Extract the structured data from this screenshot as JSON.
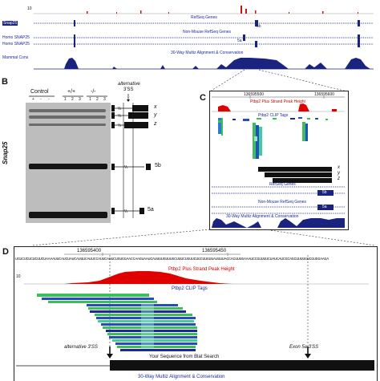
{
  "panelA": {
    "scale_value": "10",
    "tracks": [
      {
        "left_label": "",
        "title": "RefSeq Genes"
      },
      {
        "left_label": "Snap25",
        "title": ""
      },
      {
        "left_label": "",
        "title": "Non-Mouse RefSeq Genes"
      },
      {
        "left_label": "Homo SNAP25",
        "title": ""
      },
      {
        "left_label": "Homo SNAP25",
        "title": ""
      },
      {
        "left_label": "Mammal Cons",
        "title": "30-Way Multiz Alignment & Conservation"
      }
    ],
    "exon_labels": [
      "5b",
      "5a"
    ]
  },
  "panelB": {
    "letter": "B",
    "side_label": "Snap25",
    "groups": [
      {
        "title": "Control",
        "lanes": [
          "+",
          "-",
          "-"
        ]
      },
      {
        "title": "+/+",
        "lanes": [
          "1",
          "2",
          "3"
        ]
      },
      {
        "title": "-/-",
        "lanes": [
          "1",
          "2",
          "3"
        ]
      }
    ],
    "splice_title_line1": "alternative",
    "splice_title_line2": "3'SS",
    "isoforms": [
      "x",
      "y",
      "z",
      "5b",
      "5a"
    ]
  },
  "panelC": {
    "letter": "C",
    "coord_left": "136595500",
    "coord_right": "136595600",
    "peak_label": "Ptbp2 Plus Strand Peak Height",
    "clip_label": "Ptbp2 CLIP Tags",
    "isoforms": [
      "x",
      "y",
      "z"
    ],
    "refseq_label": "RefSeq Genes",
    "nonmouse_label": "Non-Mouse RefSeq Genes",
    "cons_label": "30-Way Multiz Alignment & Conservation",
    "exon_labels": [
      "5b",
      "5a"
    ]
  },
  "panelD": {
    "letter": "D",
    "coord_left": "136595400",
    "coord_right": "136595450",
    "sequence": "UCUCUCUCUCUUCUAAAAUUCAUCUAUCAUUUCAUUCCAUUCAUUCUGUGGAACCAAGUAAUCAUUUUGUUUGCUUUCUGUUCUGCUUGUUAUUUUACCACUUUGAAAUCCGUUUUCUAUCAUCGCAGCUUUUGUCGUGGAAGA",
    "scale_value": "10",
    "peak_label": "Ptbp2 Plus Strand Peak Height",
    "clip_label": "Ptbp2 CLIP Tags",
    "alt_label": "alternative 3'SS",
    "exon_label": "Exon 5a 3'SS",
    "blat_label": "Your Sequence from Blat Search",
    "cons_label": "30-Way Multiz Alignment & Conservation"
  },
  "colors": {
    "ucsc_blue": "#1a237e",
    "peak_red": "#e00000",
    "clip_green": "#3cbf5a",
    "clip_blue": "#2050c0",
    "gel_bg": "#bdbdbd"
  }
}
